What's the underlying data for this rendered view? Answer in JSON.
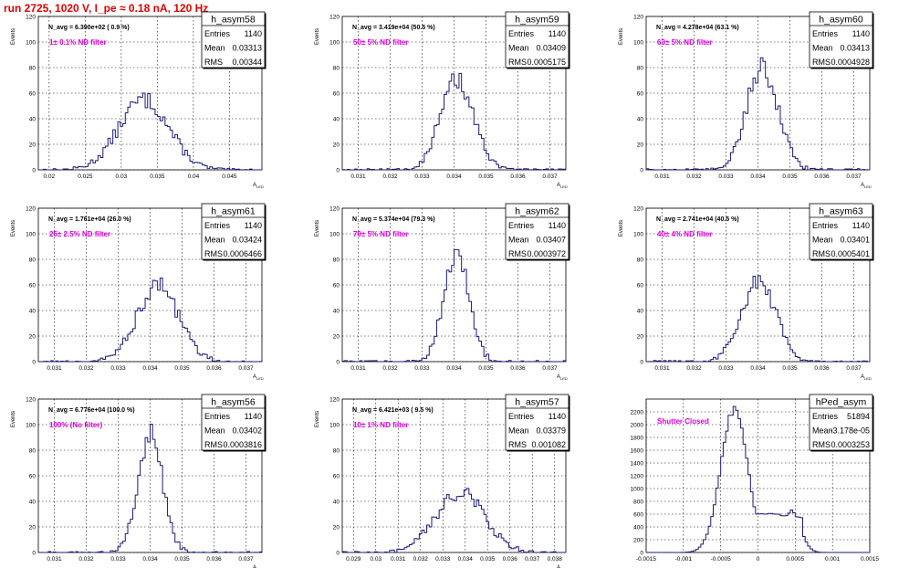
{
  "run_title": "run 2725,  1020 V, I_pe ≈ 0.18 nA, 120 Hz",
  "colors": {
    "histogram": "#1a1a7a",
    "annotation": "#e000e0",
    "title": "#e00000",
    "grid": "#000000"
  },
  "chart_data": [
    {
      "type": "histogram",
      "name": "h_asym58",
      "ylabel": "Events",
      "xlabel": "A",
      "navg": "N_avg = 6.390e+02 ( 0.9 %)",
      "filter": "1± 0.1% ND filter",
      "stats": [
        [
          "Entries",
          "1140"
        ],
        [
          "Mean",
          "0.03313"
        ],
        [
          "RMS",
          "0.00344"
        ]
      ],
      "xlim": [
        0.0185,
        0.0495
      ],
      "ylim": [
        0,
        120
      ],
      "xticks": [
        "0.02",
        "0.025",
        "0.03",
        "0.035",
        "0.04",
        "0.045"
      ],
      "yticks": [
        "0",
        "20",
        "40",
        "60",
        "80",
        "100",
        "120"
      ],
      "mean": 0.03313,
      "sd": 0.00344,
      "peak": 55
    },
    {
      "type": "histogram",
      "name": "h_asym59",
      "ylabel": "Events",
      "xlabel": "A",
      "navg": "N_avg = 3.419e+04 (50.5 %)",
      "filter": "50± 5% ND filter",
      "stats": [
        [
          "Entries",
          "1140"
        ],
        [
          "Mean",
          "0.03409"
        ],
        [
          "RMS",
          "0.0005175"
        ]
      ],
      "xlim": [
        0.0305,
        0.0375
      ],
      "ylim": [
        0,
        120
      ],
      "xticks": [
        "0.031",
        "0.032",
        "0.033",
        "0.034",
        "0.035",
        "0.036",
        "0.037"
      ],
      "yticks": [
        "0",
        "20",
        "40",
        "60",
        "80",
        "100",
        "120"
      ],
      "mean": 0.03409,
      "sd": 0.0005175,
      "peak": 70
    },
    {
      "type": "histogram",
      "name": "h_asym60",
      "ylabel": "Events",
      "xlabel": "A",
      "navg": "N_avg = 4.278e+04 (63.1 %)",
      "filter": "63± 5% ND filter",
      "stats": [
        [
          "Entries",
          "1140"
        ],
        [
          "Mean",
          "0.03413"
        ],
        [
          "RMS",
          "0.0004928"
        ]
      ],
      "xlim": [
        0.0305,
        0.0375
      ],
      "ylim": [
        0,
        120
      ],
      "xticks": [
        "0.031",
        "0.032",
        "0.033",
        "0.034",
        "0.035",
        "0.036",
        "0.037"
      ],
      "yticks": [
        "0",
        "20",
        "40",
        "60",
        "80",
        "100",
        "120"
      ],
      "mean": 0.03413,
      "sd": 0.0004928,
      "peak": 80
    },
    {
      "type": "histogram",
      "name": "h_asym61",
      "ylabel": "Events",
      "xlabel": "A",
      "navg": "N_avg = 1.761e+04 (26.0 %)",
      "filter": "25± 2.5% ND filter",
      "stats": [
        [
          "Entries",
          "1140"
        ],
        [
          "Mean",
          "0.03424"
        ],
        [
          "RMS",
          "0.0006466"
        ]
      ],
      "xlim": [
        0.0305,
        0.0375
      ],
      "ylim": [
        0,
        120
      ],
      "xticks": [
        "0.031",
        "0.032",
        "0.033",
        "0.034",
        "0.035",
        "0.036",
        "0.037"
      ],
      "yticks": [
        "0",
        "20",
        "40",
        "60",
        "80",
        "100",
        "120"
      ],
      "mean": 0.03424,
      "sd": 0.0006466,
      "peak": 60
    },
    {
      "type": "histogram",
      "name": "h_asym62",
      "ylabel": "Events",
      "xlabel": "A",
      "navg": "N_avg = 5.374e+04 (79.3 %)",
      "filter": "79± 5% ND filter",
      "stats": [
        [
          "Entries",
          "1140"
        ],
        [
          "Mean",
          "0.03407"
        ],
        [
          "RMS",
          "0.0003972"
        ]
      ],
      "xlim": [
        0.0305,
        0.0375
      ],
      "ylim": [
        0,
        120
      ],
      "xticks": [
        "0.031",
        "0.032",
        "0.033",
        "0.034",
        "0.035",
        "0.036",
        "0.037"
      ],
      "yticks": [
        "0",
        "20",
        "40",
        "60",
        "80",
        "100",
        "120"
      ],
      "mean": 0.03407,
      "sd": 0.0003972,
      "peak": 85
    },
    {
      "type": "histogram",
      "name": "h_asym63",
      "ylabel": "Events",
      "xlabel": "A",
      "navg": "N_avg = 2.741e+04 (40.5 %)",
      "filter": "40± 4% ND filter",
      "stats": [
        [
          "Entries",
          "1140"
        ],
        [
          "Mean",
          "0.03401"
        ],
        [
          "RMS",
          "0.0005401"
        ]
      ],
      "xlim": [
        0.0305,
        0.0375
      ],
      "ylim": [
        0,
        120
      ],
      "xticks": [
        "0.031",
        "0.032",
        "0.033",
        "0.034",
        "0.035",
        "0.036",
        "0.037"
      ],
      "yticks": [
        "0",
        "20",
        "40",
        "60",
        "80",
        "100",
        "120"
      ],
      "mean": 0.03401,
      "sd": 0.0005401,
      "peak": 63
    },
    {
      "type": "histogram",
      "name": "h_asym56",
      "ylabel": "Events",
      "xlabel": "A",
      "navg": "N_avg = 6.776e+04 (100.0 %)",
      "filter": "100% (No filter)",
      "stats": [
        [
          "Entries",
          "1140"
        ],
        [
          "Mean",
          "0.03402"
        ],
        [
          "RMS",
          "0.0003816"
        ]
      ],
      "xlim": [
        0.0305,
        0.0375
      ],
      "ylim": [
        0,
        120
      ],
      "xticks": [
        "0.031",
        "0.032",
        "0.033",
        "0.034",
        "0.035",
        "0.036",
        "0.037"
      ],
      "yticks": [
        "0",
        "20",
        "40",
        "60",
        "80",
        "100",
        "120"
      ],
      "mean": 0.03402,
      "sd": 0.0003816,
      "peak": 93
    },
    {
      "type": "histogram",
      "name": "h_asym57",
      "ylabel": "Events",
      "xlabel": "A",
      "navg": "N_avg = 6.421e+03 ( 9.5 %)",
      "filter": "10± 1% ND filter",
      "stats": [
        [
          "Entries",
          "1140"
        ],
        [
          "Mean",
          "0.03379"
        ],
        [
          "RMS",
          "0.001082"
        ]
      ],
      "xlim": [
        0.0285,
        0.0385
      ],
      "ylim": [
        0,
        120
      ],
      "xticks": [
        "0.029",
        "0.03",
        "0.031",
        "0.032",
        "0.033",
        "0.034",
        "0.035",
        "0.036",
        "0.037",
        "0.038"
      ],
      "yticks": [
        "0",
        "20",
        "40",
        "60",
        "80",
        "100",
        "120"
      ],
      "mean": 0.03379,
      "sd": 0.001082,
      "peak": 47
    },
    {
      "type": "histogram",
      "name": "hPed_asym",
      "ylabel": "",
      "xlabel": "",
      "navg": "",
      "filter": "Shutter Closed",
      "stats": [
        [
          "Entries",
          "51894"
        ],
        [
          "Mean",
          "-3.178e-05"
        ],
        [
          "RMS",
          "0.0003253"
        ]
      ],
      "xlim": [
        -0.0015,
        0.0015
      ],
      "ylim": [
        0,
        2400
      ],
      "xticks": [
        "-0.0015",
        "-0.001",
        "-0.0005",
        "0",
        "0.0005",
        "0.001",
        "0.0015"
      ],
      "yticks": [
        "0",
        "200",
        "400",
        "600",
        "800",
        "1000",
        "1200",
        "1400",
        "1600",
        "1800",
        "2000",
        "2200"
      ],
      "peaks": [
        {
          "mu": -0.00032,
          "sd": 0.00018,
          "h": 2240
        },
        {
          "mu": 0.00045,
          "sd": 0.00012,
          "h": 650
        }
      ],
      "baseline": {
        "lo": -0.0005,
        "hi": 0.0006,
        "h": 620
      }
    }
  ]
}
